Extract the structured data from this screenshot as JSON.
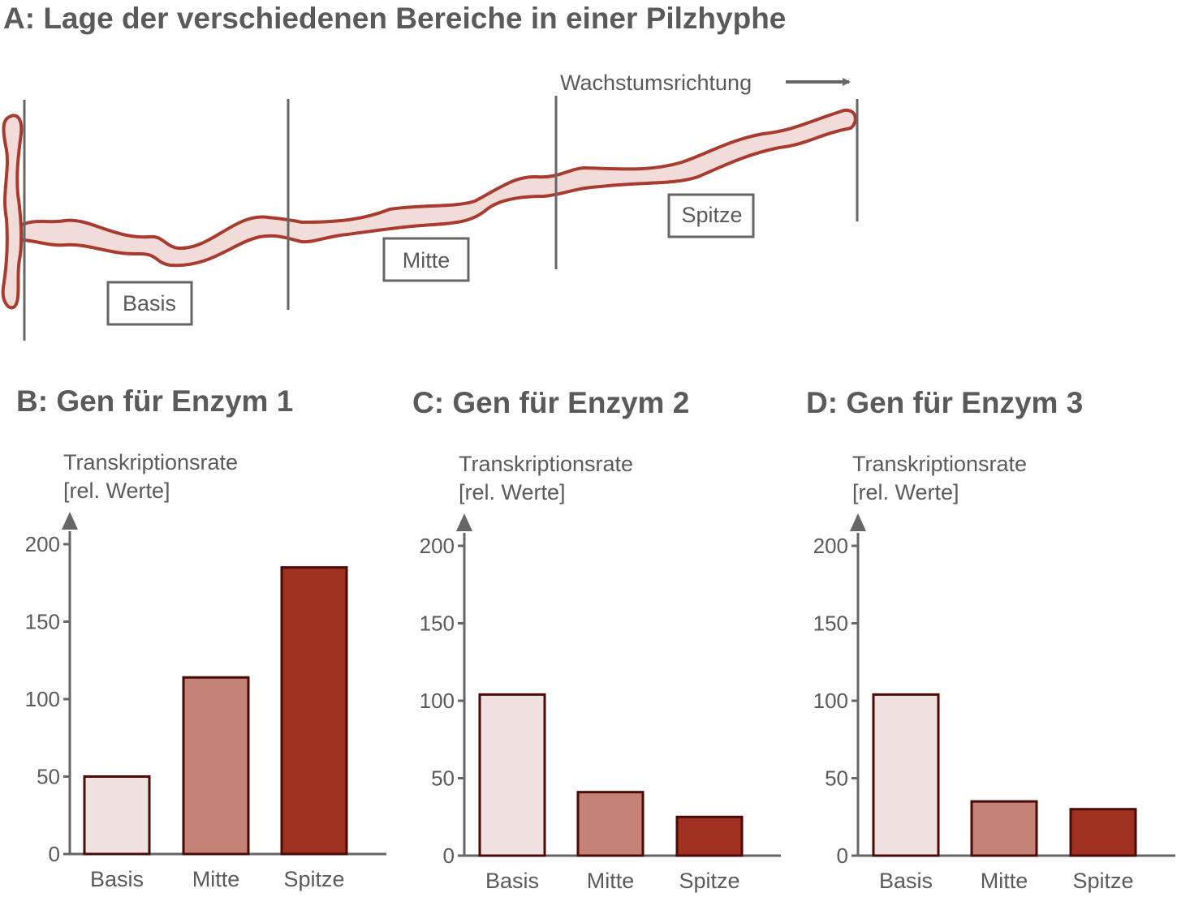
{
  "panel_a": {
    "title": "A: Lage der verschiedenen Bereiche in einer Pilzhyphe",
    "direction_label": "Wachstumsrichtung",
    "regions": [
      "Basis",
      "Mitte",
      "Spitze"
    ]
  },
  "colors": {
    "basis": "#f0e0df",
    "mitte": "#c58378",
    "spitze": "#a0301f",
    "outline": "#4a0a05",
    "hypha_stroke": "#a83a2e",
    "hypha_fill": "#f2dcda",
    "axis": "#666666"
  },
  "chart_data": [
    {
      "type": "bar",
      "title": "B: Gen für Enzym 1",
      "ylabel_line1": "Transkriptionsrate",
      "ylabel_line2": "[rel. Werte]",
      "categories": [
        "Basis",
        "Mitte",
        "Spitze"
      ],
      "values": [
        50,
        114,
        185
      ],
      "ylim": [
        0,
        200
      ],
      "yticks": [
        0,
        50,
        100,
        150,
        200
      ]
    },
    {
      "type": "bar",
      "title": "C: Gen für Enzym 2",
      "ylabel_line1": "Transkriptionsrate",
      "ylabel_line2": "[rel. Werte]",
      "categories": [
        "Basis",
        "Mitte",
        "Spitze"
      ],
      "values": [
        104,
        41,
        25
      ],
      "ylim": [
        0,
        200
      ],
      "yticks": [
        0,
        50,
        100,
        150,
        200
      ]
    },
    {
      "type": "bar",
      "title": "D: Gen für Enzym 3",
      "ylabel_line1": "Transkriptionsrate",
      "ylabel_line2": "[rel. Werte]",
      "categories": [
        "Basis",
        "Mitte",
        "Spitze"
      ],
      "values": [
        104,
        35,
        30
      ],
      "ylim": [
        0,
        200
      ],
      "yticks": [
        0,
        50,
        100,
        150,
        200
      ]
    }
  ]
}
